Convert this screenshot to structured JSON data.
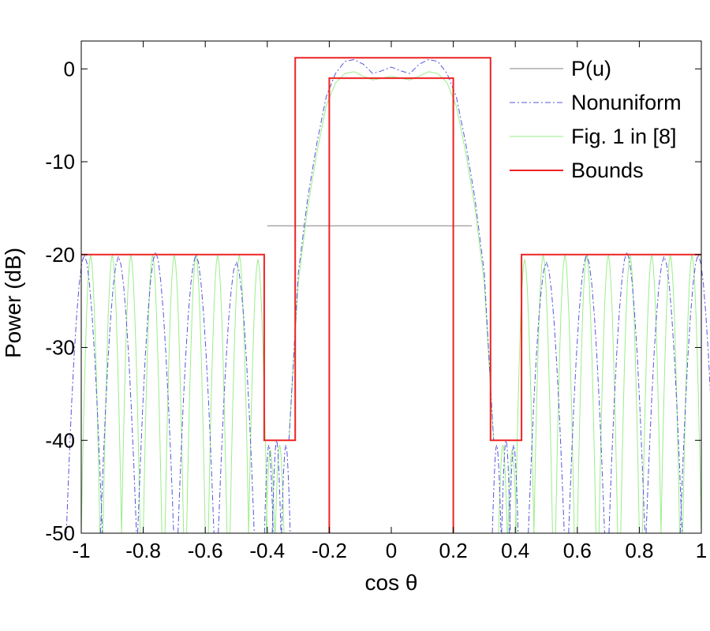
{
  "chart_data": {
    "type": "line",
    "title": "",
    "xlabel": "cos θ",
    "ylabel": "Power (dB)",
    "xlim": [
      -1,
      1
    ],
    "ylim": [
      -50,
      3
    ],
    "xticks": [
      -1,
      -0.8,
      -0.6,
      -0.4,
      -0.2,
      0,
      0.2,
      0.4,
      0.6,
      0.8,
      1
    ],
    "xtick_labels": [
      "-1",
      "-0.8",
      "-0.6",
      "-0.4",
      "-0.2",
      "0",
      "0.2",
      "0.4",
      "0.6",
      "0.8",
      "1"
    ],
    "yticks": [
      0,
      -10,
      -20,
      -30,
      -40,
      -50
    ],
    "ytick_labels": [
      "0",
      "-10",
      "-20",
      "-30",
      "-40",
      "-50"
    ],
    "grid": false,
    "legend_position": "top-right",
    "series": [
      {
        "name": "P(u)",
        "color": "#808080",
        "style": "solid",
        "x": [
          -0.4,
          0.26
        ],
        "y": [
          -16.9,
          -16.9
        ]
      },
      {
        "name": "Nonuniform",
        "color": "#5555dd",
        "style": "dashdot",
        "main_lobe": {
          "x": [
            -0.33,
            -0.3,
            -0.27,
            -0.24,
            -0.21,
            -0.18,
            -0.15,
            -0.12,
            -0.09,
            -0.06,
            -0.03,
            0,
            0.03,
            0.06,
            0.09,
            0.12,
            0.15,
            0.18,
            0.21,
            0.24,
            0.27,
            0.3,
            0.33
          ],
          "y": [
            -40,
            -22,
            -14,
            -8,
            -3,
            -0.5,
            0.8,
            1,
            0.5,
            -0.5,
            -0.2,
            0.2,
            -0.2,
            -0.5,
            0.5,
            1,
            0.8,
            -0.5,
            -3,
            -8,
            -14,
            -22,
            -40
          ]
        },
        "sidelobe_peaks": [
          {
            "x": -0.99,
            "y": -20
          },
          {
            "x": -0.88,
            "y": -20.2
          },
          {
            "x": -0.76,
            "y": -19.7
          },
          {
            "x": -0.63,
            "y": -20
          },
          {
            "x": -0.5,
            "y": -20.8
          },
          {
            "x": -0.395,
            "y": -40.5
          },
          {
            "x": -0.37,
            "y": -40
          },
          {
            "x": -0.34,
            "y": -40.5
          },
          {
            "x": 0.34,
            "y": -40.5
          },
          {
            "x": 0.37,
            "y": -40
          },
          {
            "x": 0.395,
            "y": -40.5
          },
          {
            "x": 0.5,
            "y": -20.8
          },
          {
            "x": 0.63,
            "y": -20
          },
          {
            "x": 0.76,
            "y": -19.7
          },
          {
            "x": 0.88,
            "y": -20.2
          },
          {
            "x": 0.99,
            "y": -20
          }
        ]
      },
      {
        "name": "Fig. 1 in [8]",
        "color": "#99ee88",
        "style": "solid",
        "main_lobe": {
          "x": [
            -0.33,
            -0.3,
            -0.27,
            -0.24,
            -0.21,
            -0.18,
            -0.15,
            -0.12,
            -0.09,
            -0.06,
            -0.03,
            0,
            0.03,
            0.06,
            0.09,
            0.12,
            0.15,
            0.18,
            0.21,
            0.24,
            0.27,
            0.3,
            0.33
          ],
          "y": [
            -40,
            -23,
            -15,
            -9,
            -4,
            -1.5,
            -0.5,
            -0.3,
            -0.8,
            -1.2,
            -1,
            -0.8,
            -1,
            -1.2,
            -0.8,
            -0.3,
            -0.5,
            -1.5,
            -4,
            -9,
            -15,
            -23,
            -40
          ]
        },
        "sidelobe_peaks": [
          {
            "x": -0.97,
            "y": -20
          },
          {
            "x": -0.9,
            "y": -20
          },
          {
            "x": -0.84,
            "y": -20
          },
          {
            "x": -0.77,
            "y": -20
          },
          {
            "x": -0.7,
            "y": -20
          },
          {
            "x": -0.63,
            "y": -20
          },
          {
            "x": -0.56,
            "y": -20
          },
          {
            "x": -0.49,
            "y": -20
          },
          {
            "x": -0.43,
            "y": -20.5
          },
          {
            "x": -0.39,
            "y": -41
          },
          {
            "x": -0.36,
            "y": -40.5
          },
          {
            "x": 0.36,
            "y": -40.5
          },
          {
            "x": 0.39,
            "y": -41
          },
          {
            "x": 0.43,
            "y": -20.5
          },
          {
            "x": 0.49,
            "y": -20
          },
          {
            "x": 0.56,
            "y": -20
          },
          {
            "x": 0.63,
            "y": -20
          },
          {
            "x": 0.7,
            "y": -20
          },
          {
            "x": 0.77,
            "y": -20
          },
          {
            "x": 0.84,
            "y": -20
          },
          {
            "x": 0.9,
            "y": -20
          },
          {
            "x": 0.97,
            "y": -20
          }
        ]
      },
      {
        "name": "Bounds",
        "color": "#ee2222",
        "style": "solid",
        "upper": {
          "x": [
            -1,
            -0.41,
            -0.41,
            -0.31,
            -0.31,
            0.32,
            0.32,
            0.42,
            0.42,
            1
          ],
          "y": [
            -20,
            -20,
            -40,
            -40,
            1.2,
            1.2,
            -40,
            -40,
            -20,
            -20
          ]
        },
        "lower": {
          "x": [
            -0.2,
            -0.2,
            0.2,
            0.2
          ],
          "y": [
            -50,
            -1,
            -1,
            -50
          ]
        }
      }
    ]
  }
}
